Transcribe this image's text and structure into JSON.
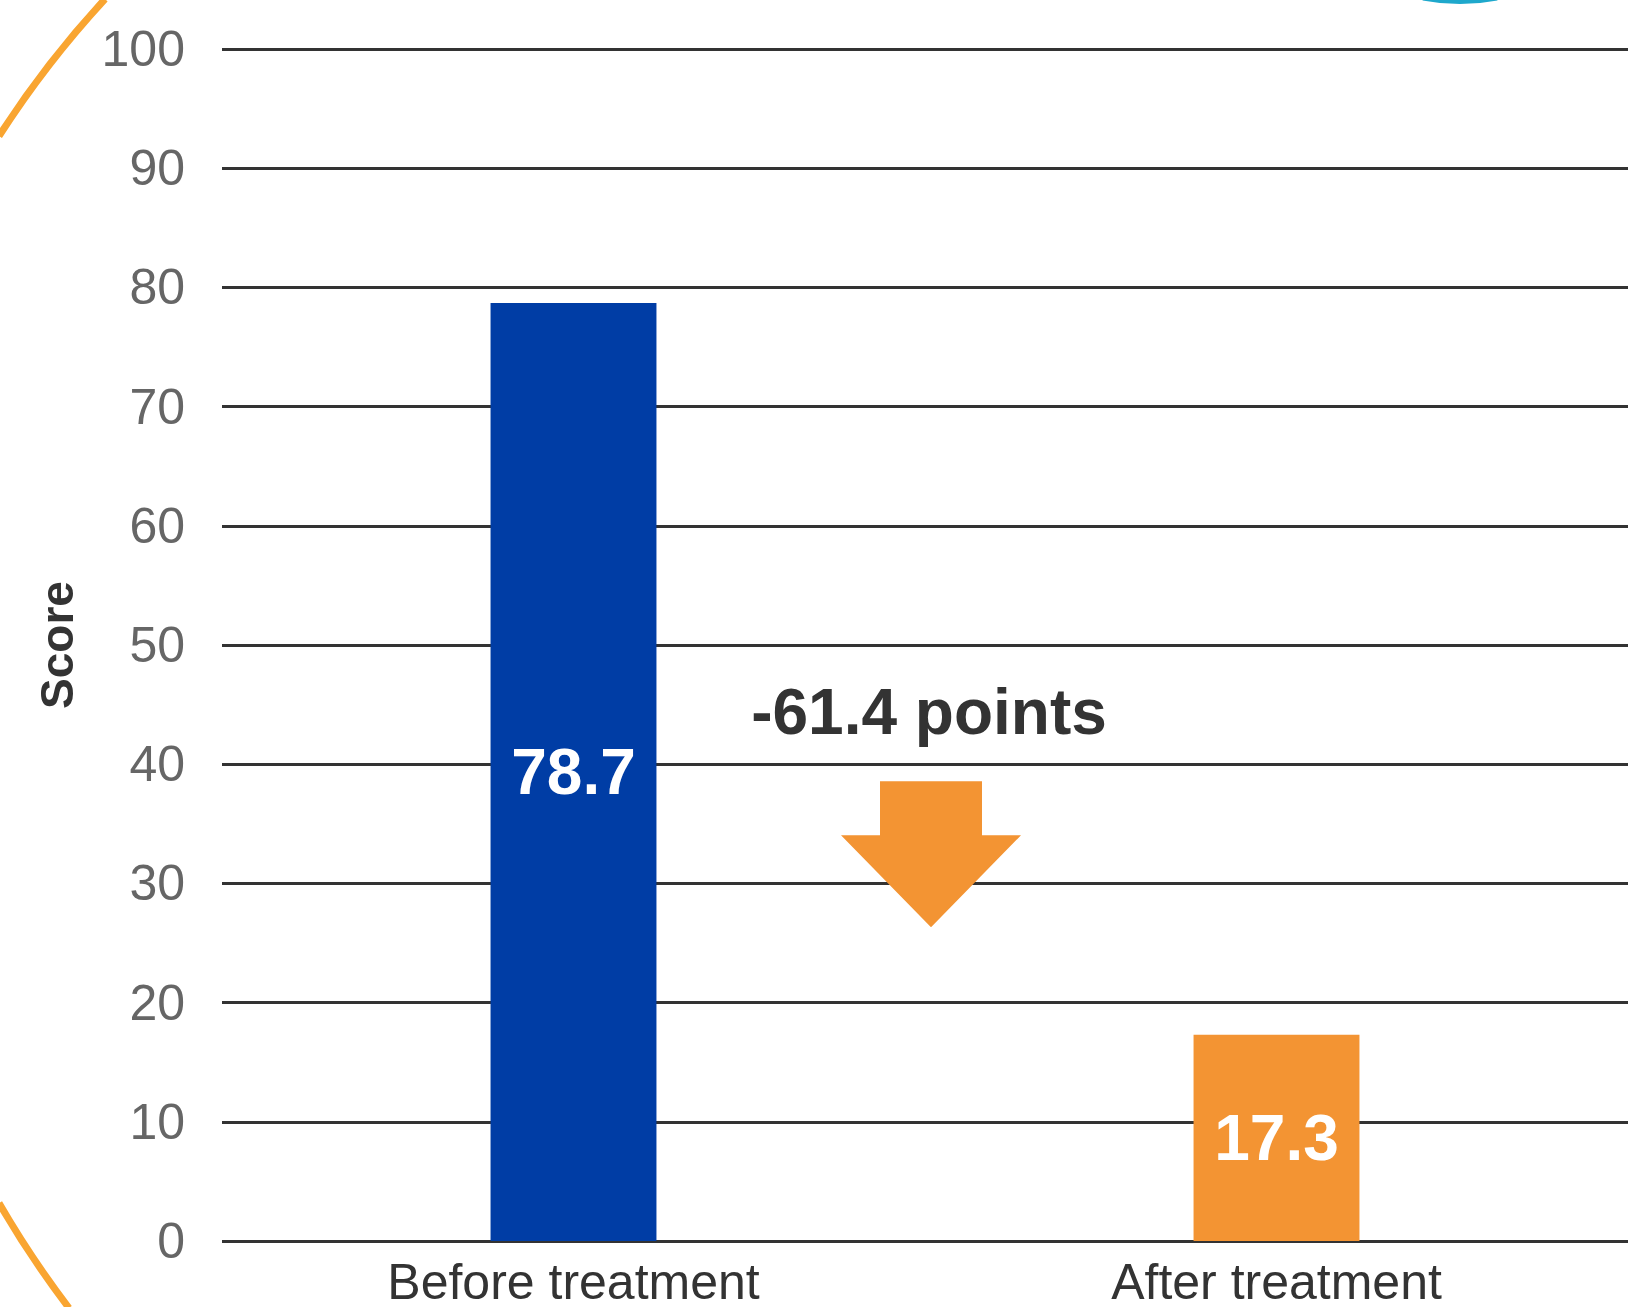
{
  "chart_data": {
    "type": "bar",
    "categories": [
      "Before treatment",
      "After treatment"
    ],
    "values": [
      78.7,
      17.3
    ],
    "colors": [
      "#003da5",
      "#f39433"
    ],
    "ylabel": "Score",
    "ylim": [
      0,
      100
    ],
    "yticks": [
      0,
      10,
      20,
      30,
      40,
      50,
      60,
      70,
      80,
      90,
      100
    ],
    "grid": "y",
    "data_labels": true,
    "annotations": [
      "-61.4 points"
    ]
  }
}
